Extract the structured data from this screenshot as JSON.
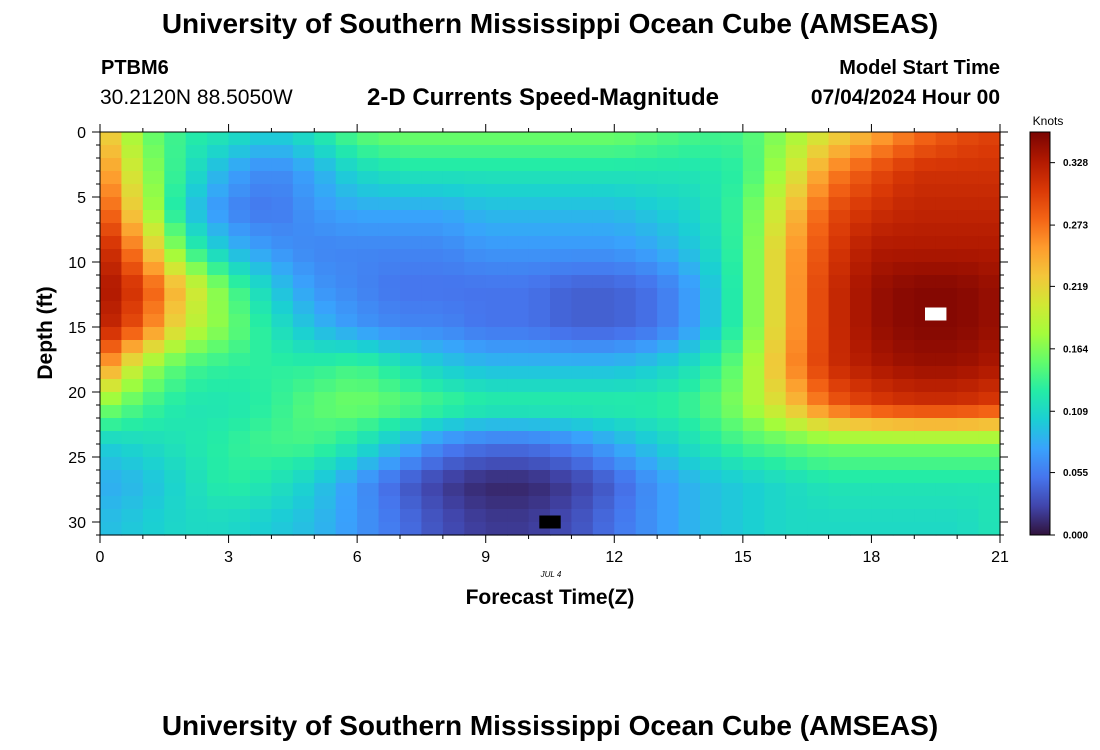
{
  "page": {
    "title_top": "University of Southern Mississippi Ocean Cube (AMSEAS)",
    "title_bottom": "University of Southern Mississippi Ocean Cube (AMSEAS)",
    "station": "PTBM6",
    "coords": "30.2120N  88.5050W",
    "subtitle": "2-D Currents Speed-Magnitude",
    "model_start_label": "Model Start Time",
    "model_start_value": "07/04/2024 Hour 00",
    "date_label": "JUL 4"
  },
  "chart_data": {
    "type": "heatmap",
    "title": "2-D Currents Speed-Magnitude",
    "xlabel": "Forecast Time(Z)",
    "ylabel": "Depth (ft)",
    "xlim": [
      0,
      21
    ],
    "ylim": [
      0,
      31
    ],
    "x_ticks": [
      0,
      3,
      6,
      9,
      12,
      15,
      18,
      21
    ],
    "y_ticks": [
      0,
      5,
      10,
      15,
      20,
      25,
      30
    ],
    "colorbar": {
      "label": "Knots",
      "range": [
        0,
        0.355
      ],
      "ticks": [
        "0.000",
        "0.055",
        "0.109",
        "0.164",
        "0.219",
        "0.273",
        "0.328"
      ],
      "tick_values": [
        0,
        0.055,
        0.109,
        0.164,
        0.219,
        0.273,
        0.328
      ]
    },
    "grid": false,
    "approximate_field": {
      "description": "Speed (knots) estimated at sampled forecast times and depths; interpolated for display",
      "times": [
        0,
        1,
        2,
        3,
        4,
        5,
        6,
        7,
        8,
        9,
        10,
        11,
        12,
        13,
        14,
        15,
        16,
        17,
        18,
        19,
        20,
        21
      ],
      "depths": [
        0,
        3,
        6,
        9,
        12,
        15,
        18,
        21,
        24,
        27,
        30
      ],
      "values": [
        [
          0.24,
          0.16,
          0.13,
          0.12,
          0.1,
          0.12,
          0.15,
          0.16,
          0.16,
          0.16,
          0.16,
          0.16,
          0.16,
          0.15,
          0.14,
          0.14,
          0.17,
          0.21,
          0.24,
          0.27,
          0.29,
          0.3
        ],
        [
          0.27,
          0.18,
          0.12,
          0.08,
          0.06,
          0.08,
          0.11,
          0.12,
          0.12,
          0.12,
          0.12,
          0.12,
          0.12,
          0.12,
          0.12,
          0.13,
          0.19,
          0.26,
          0.29,
          0.31,
          0.31,
          0.31
        ],
        [
          0.3,
          0.2,
          0.1,
          0.06,
          0.05,
          0.07,
          0.08,
          0.08,
          0.08,
          0.09,
          0.09,
          0.09,
          0.09,
          0.1,
          0.11,
          0.14,
          0.22,
          0.29,
          0.31,
          0.32,
          0.32,
          0.32
        ],
        [
          0.33,
          0.25,
          0.14,
          0.09,
          0.07,
          0.06,
          0.06,
          0.06,
          0.06,
          0.07,
          0.07,
          0.07,
          0.07,
          0.08,
          0.1,
          0.14,
          0.24,
          0.3,
          0.33,
          0.33,
          0.33,
          0.33
        ],
        [
          0.34,
          0.3,
          0.22,
          0.15,
          0.1,
          0.07,
          0.06,
          0.05,
          0.05,
          0.05,
          0.05,
          0.04,
          0.04,
          0.05,
          0.08,
          0.14,
          0.24,
          0.31,
          0.34,
          0.35,
          0.35,
          0.34
        ],
        [
          0.33,
          0.28,
          0.2,
          0.16,
          0.12,
          0.09,
          0.07,
          0.06,
          0.06,
          0.05,
          0.05,
          0.04,
          0.04,
          0.05,
          0.08,
          0.14,
          0.24,
          0.31,
          0.34,
          0.35,
          0.35,
          0.34
        ],
        [
          0.27,
          0.18,
          0.14,
          0.13,
          0.13,
          0.13,
          0.14,
          0.12,
          0.1,
          0.09,
          0.09,
          0.09,
          0.09,
          0.1,
          0.12,
          0.16,
          0.25,
          0.31,
          0.33,
          0.34,
          0.34,
          0.33
        ],
        [
          0.17,
          0.14,
          0.12,
          0.12,
          0.13,
          0.15,
          0.16,
          0.15,
          0.14,
          0.13,
          0.13,
          0.13,
          0.13,
          0.13,
          0.14,
          0.17,
          0.22,
          0.28,
          0.3,
          0.31,
          0.31,
          0.3
        ],
        [
          0.1,
          0.11,
          0.12,
          0.13,
          0.14,
          0.14,
          0.12,
          0.09,
          0.06,
          0.05,
          0.05,
          0.06,
          0.08,
          0.1,
          0.12,
          0.14,
          0.15,
          0.16,
          0.16,
          0.16,
          0.16,
          0.16
        ],
        [
          0.08,
          0.09,
          0.11,
          0.13,
          0.12,
          0.1,
          0.07,
          0.04,
          0.02,
          0.01,
          0.01,
          0.02,
          0.04,
          0.07,
          0.09,
          0.1,
          0.11,
          0.12,
          0.12,
          0.12,
          0.12,
          0.12
        ],
        [
          0.09,
          0.1,
          0.11,
          0.11,
          0.1,
          0.09,
          0.07,
          0.05,
          0.03,
          0.02,
          0.02,
          0.03,
          0.05,
          0.07,
          0.09,
          0.1,
          0.11,
          0.11,
          0.11,
          0.11,
          0.11,
          0.12
        ]
      ]
    },
    "missing_cells": [
      {
        "time": 19.5,
        "depth": 14,
        "color": "#ffffff"
      },
      {
        "time": 10.5,
        "depth": 30,
        "color": "#000000"
      }
    ],
    "palette": [
      "#30123b",
      "#4145ab",
      "#4675ed",
      "#39a2fc",
      "#1bcfd4",
      "#24eca6",
      "#61fc6c",
      "#a4fc3b",
      "#d1e834",
      "#f3c63a",
      "#fe9b2d",
      "#f36315",
      "#d93806",
      "#b11901",
      "#7a0402"
    ]
  }
}
